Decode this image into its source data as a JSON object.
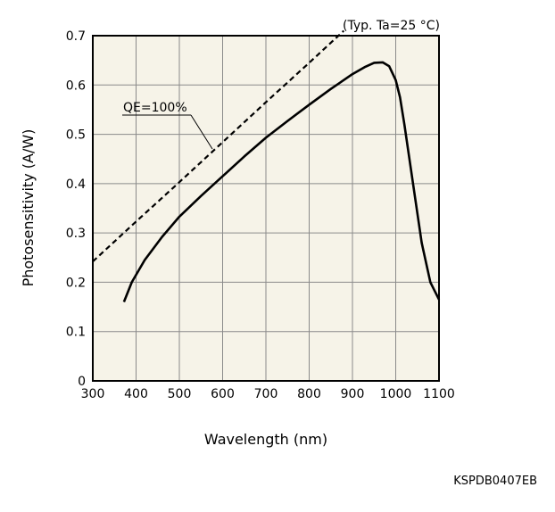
{
  "colors": {
    "plot_background": "#f6f3e8",
    "grid": "#8a8a8a",
    "frame": "#000000",
    "curve": "#000000"
  },
  "chart_data": {
    "type": "line",
    "title": "",
    "condition_note": "(Typ. Ta=25 °C)",
    "xlabel": "Wavelength (nm)",
    "ylabel": "Photosensitivity (A/W)",
    "xlim": [
      300,
      1100
    ],
    "ylim": [
      0,
      0.7
    ],
    "x_ticks": [
      300,
      400,
      500,
      600,
      700,
      800,
      900,
      1000,
      1100
    ],
    "y_ticks": [
      0,
      0.1,
      0.2,
      0.3,
      0.4,
      0.5,
      0.6,
      0.7
    ],
    "grid": true,
    "series": [
      {
        "style": "solid",
        "x": [
          372,
          390,
          420,
          460,
          500,
          550,
          600,
          650,
          700,
          750,
          800,
          850,
          900,
          930,
          950,
          970,
          985,
          1000,
          1010,
          1020,
          1040,
          1060,
          1080,
          1100
        ],
        "y": [
          0.16,
          0.2,
          0.245,
          0.292,
          0.333,
          0.375,
          0.415,
          0.455,
          0.493,
          0.527,
          0.56,
          0.592,
          0.622,
          0.637,
          0.645,
          0.646,
          0.638,
          0.61,
          0.575,
          0.52,
          0.4,
          0.28,
          0.2,
          0.165
        ]
      },
      {
        "name": "QE=100%",
        "style": "dashed",
        "x": [
          300,
          400,
          500,
          600,
          700,
          800,
          880
        ],
        "y": [
          0.242,
          0.323,
          0.403,
          0.484,
          0.565,
          0.645,
          0.71
        ]
      }
    ],
    "annotations": [
      {
        "text": "QE=100%",
        "points_to_x": 570,
        "points_to_y": 0.46
      }
    ]
  },
  "document_code": "KSPDB0407EB"
}
